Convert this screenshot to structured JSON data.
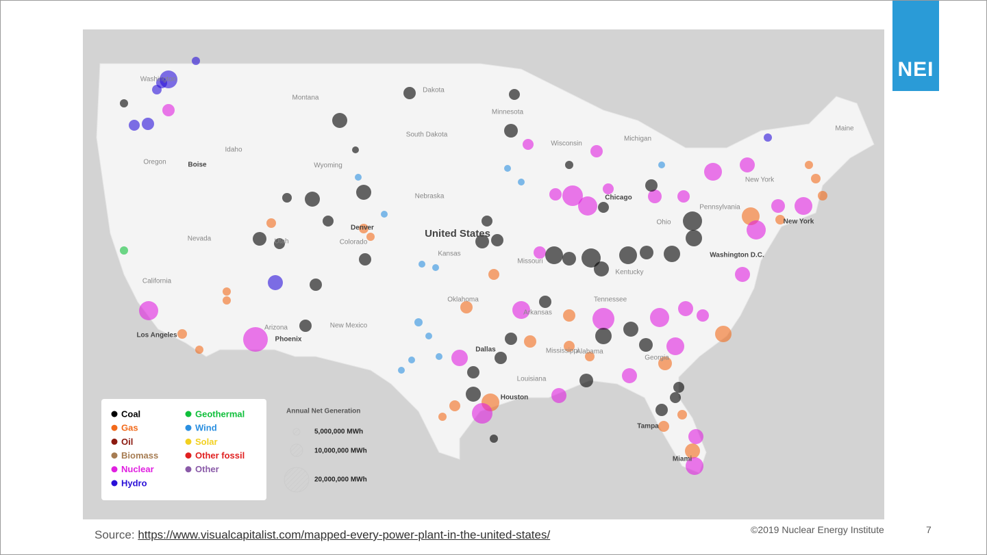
{
  "logo": "NEI",
  "map": {
    "labels": [
      "Washington",
      "Montana",
      "Idaho",
      "Oregon",
      "Boise",
      "Wyoming",
      "Nevada",
      "Utah",
      "Colorado",
      "Denver",
      "California",
      "Los Angeles",
      "Arizona",
      "Phoenix",
      "New Mexico",
      "Dakota",
      "South Dakota",
      "Nebraska",
      "Kansas",
      "United States",
      "Minnesota",
      "Wisconsin",
      "Michigan",
      "Chicago",
      "Missouri",
      "Ohio",
      "Kentucky",
      "Tennessee",
      "Arkansas",
      "Oklahoma",
      "Dallas",
      "Houston",
      "Louisiana",
      "Mississippi",
      "Alabama",
      "Georgia",
      "Tampa",
      "Miami",
      "New York",
      "Pennsylvania",
      "Washington D.C.",
      "Maine",
      "New York"
    ]
  },
  "legend": {
    "items": [
      {
        "name": "Coal",
        "color": "#000000"
      },
      {
        "name": "Gas",
        "color": "#f26a1b"
      },
      {
        "name": "Oil",
        "color": "#8b1a10"
      },
      {
        "name": "Biomass",
        "color": "#a67c52"
      },
      {
        "name": "Nuclear",
        "color": "#e020e0"
      },
      {
        "name": "Hydro",
        "color": "#2a10d8"
      },
      {
        "name": "Geothermal",
        "color": "#0fbf3a"
      },
      {
        "name": "Wind",
        "color": "#2b8fe0"
      },
      {
        "name": "Solar",
        "color": "#f2d020"
      },
      {
        "name": "Other fossil",
        "color": "#e02020"
      },
      {
        "name": "Other",
        "color": "#8a5aa8"
      }
    ]
  },
  "size_legend": {
    "title": "Annual Net Generation",
    "entries": [
      "5,000,000 MWh",
      "10,000,000 MWh",
      "20,000,000 MWh"
    ]
  },
  "footer": {
    "source_label": "Source:",
    "source_url": "https://www.visualcapitalist.com/mapped-every-power-plant-in-the-united-states/",
    "copyright": "©2019 Nuclear Energy Institute",
    "page_number": "7"
  }
}
